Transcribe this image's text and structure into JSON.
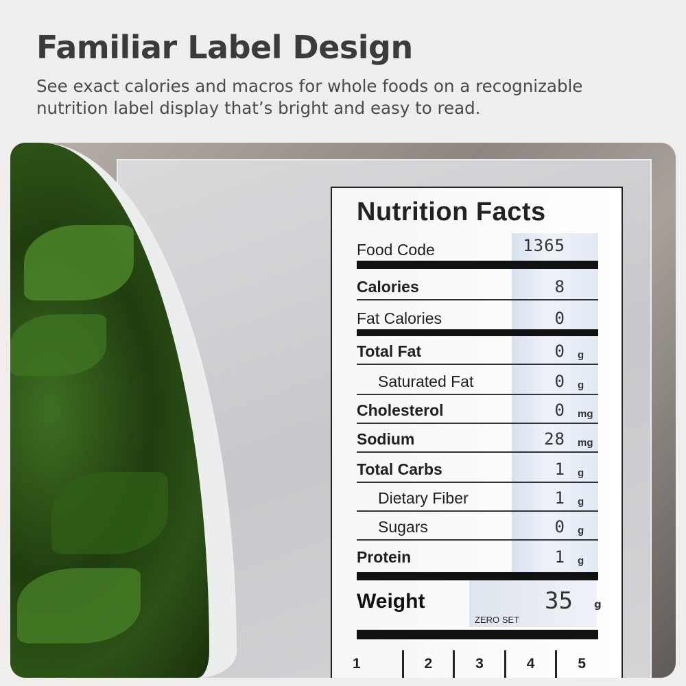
{
  "header": {
    "title": "Familiar Label Design",
    "subtitle": "See exact calories and macros for whole foods on a recognizable nutrition label display that’s bright and easy to read."
  },
  "label": {
    "title": "Nutrition Facts",
    "food_code": {
      "label": "Food Code",
      "value": "1365"
    },
    "rows": [
      {
        "label": "Calories",
        "value": "8",
        "unit": ""
      },
      {
        "label": "Fat Calories",
        "value": "0",
        "unit": ""
      },
      {
        "label": "Total Fat",
        "value": "0",
        "unit": "g"
      },
      {
        "label": "Saturated Fat",
        "value": "0",
        "unit": "g"
      },
      {
        "label": "Cholesterol",
        "value": "0",
        "unit": "mg"
      },
      {
        "label": "Sodium",
        "value": "28",
        "unit": "mg"
      },
      {
        "label": "Total Carbs",
        "value": "1",
        "unit": "g"
      },
      {
        "label": "Dietary Fiber",
        "value": "1",
        "unit": "g"
      },
      {
        "label": "Sugars",
        "value": "0",
        "unit": "g"
      },
      {
        "label": "Protein",
        "value": "1",
        "unit": "g"
      }
    ],
    "weight": {
      "label": "Weight",
      "value": "35",
      "unit": "g",
      "zero_label": "ZERO SET"
    },
    "presets": [
      "1",
      "2",
      "3",
      "4",
      "5"
    ]
  }
}
